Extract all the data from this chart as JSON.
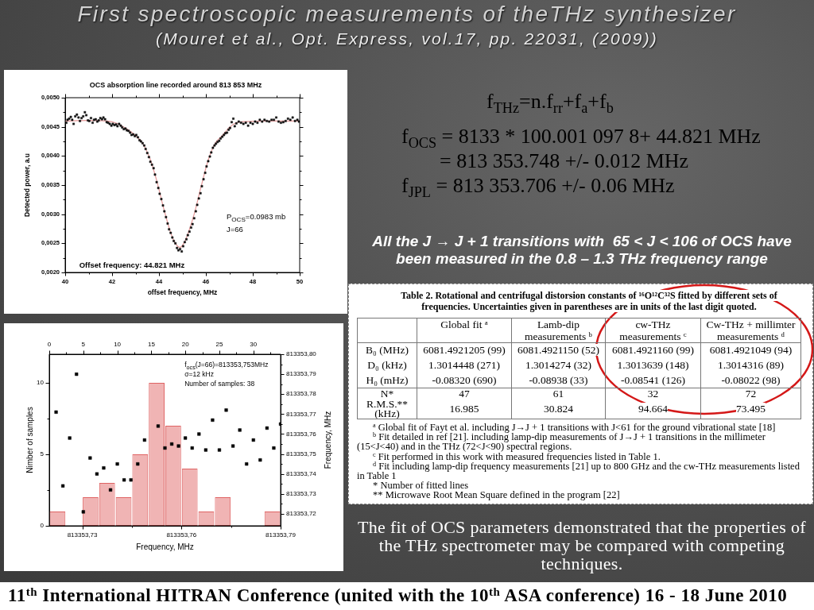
{
  "chart_data": [
    {
      "type": "other",
      "title": "First spectroscopic measurements of theTHz synthesizer",
      "subtitle": "(Mouret et al., Opt. Express, vol.17, pp. 22031, (2009))"
    },
    {
      "type": "scatter",
      "title": "OCS absorption line recorded around 813 853 MHz",
      "xlabel": "offset frequency, MHz",
      "ylabel": "Detected power, a.u",
      "xlim": [
        40,
        50
      ],
      "xticks": [
        40,
        {
          "value": 41,
          "label": null
        },
        42,
        {
          "value": 43,
          "label": null
        },
        44,
        {
          "value": 45,
          "label": null
        },
        46,
        {
          "value": 47,
          "label": null
        },
        48,
        {
          "value": 49,
          "label": null
        },
        50
      ],
      "ylim": [
        0.002,
        0.005
      ],
      "yticks": [
        {
          "value": 0.002,
          "label": "0,0020"
        },
        {
          "value": 0.00225,
          "label": null
        },
        {
          "value": 0.0025,
          "label": "0,0025"
        },
        {
          "value": 0.00275,
          "label": null
        },
        {
          "value": 0.003,
          "label": "0,0030"
        },
        {
          "value": 0.00325,
          "label": null
        },
        {
          "value": 0.0035,
          "label": "0,0035"
        },
        {
          "value": 0.00375,
          "label": null
        },
        {
          "value": 0.004,
          "label": "0,0040"
        },
        {
          "value": 0.00425,
          "label": null
        },
        {
          "value": 0.0045,
          "label": "0,0045"
        },
        {
          "value": 0.00475,
          "label": null
        },
        {
          "value": 0.005,
          "label": "0,0050"
        }
      ],
      "series": [
        {
          "type": "scatter",
          "marker": "square",
          "color": "#111111",
          "x": [
            40.05,
            40.1,
            40.17,
            40.24,
            40.3,
            40.36,
            40.43,
            40.5,
            40.57,
            40.63,
            40.7,
            40.77,
            40.84,
            40.9,
            40.97,
            41.03,
            41.1,
            41.17,
            41.23,
            41.3,
            41.37,
            41.43,
            41.5,
            41.57,
            41.63,
            41.7,
            41.77,
            41.83,
            41.9,
            41.97,
            42.03,
            42.1,
            42.17,
            42.23,
            42.3,
            42.37,
            42.43,
            42.5,
            42.57,
            42.63,
            42.7,
            42.77,
            42.83,
            42.9,
            42.97,
            43.03,
            43.1,
            43.17,
            43.23,
            43.3,
            43.37,
            43.43,
            43.5,
            43.57,
            43.63,
            43.7,
            43.77,
            43.83,
            43.9,
            43.97,
            44.03,
            44.1,
            44.17,
            44.23,
            44.3,
            44.37,
            44.43,
            44.5,
            44.57,
            44.63,
            44.7,
            44.77,
            44.83,
            44.9,
            44.97,
            45.03,
            45.1,
            45.17,
            45.23,
            45.3,
            45.37,
            45.43,
            45.5,
            45.57,
            45.63,
            45.7,
            45.77,
            45.83,
            45.9,
            45.97,
            46.03,
            46.1,
            46.17,
            46.23,
            46.3,
            46.37,
            46.43,
            46.5,
            46.57,
            46.63,
            46.7,
            46.77,
            46.83,
            46.9,
            46.97,
            47.03,
            47.1,
            47.17,
            47.23,
            47.3,
            47.4,
            47.5,
            47.6,
            47.7,
            47.8,
            47.9,
            48.0,
            48.1,
            48.2,
            48.3,
            48.4,
            48.5,
            48.6,
            48.7,
            48.8,
            48.9,
            49.0,
            49.1,
            49.2,
            49.3,
            49.4,
            49.5,
            49.6,
            49.7,
            49.8,
            49.9,
            49.97
          ],
          "values": [
            0.00457,
            0.00462,
            0.00464,
            0.00467,
            0.00462,
            0.00455,
            0.00468,
            0.00471,
            0.00466,
            0.0046,
            0.00465,
            0.00468,
            0.00475,
            0.0047,
            0.00461,
            0.0046,
            0.00465,
            0.00457,
            0.00462,
            0.00463,
            0.00459,
            0.00461,
            0.00465,
            0.00463,
            0.00466,
            0.00463,
            0.00458,
            0.00457,
            0.00455,
            0.00452,
            0.00455,
            0.00453,
            0.00454,
            0.00451,
            0.00455,
            0.00452,
            0.00449,
            0.00446,
            0.00447,
            0.00444,
            0.00443,
            0.0044,
            0.00436,
            0.00437,
            0.00434,
            0.00436,
            0.00432,
            0.00427,
            0.00425,
            0.00422,
            0.00418,
            0.00412,
            0.00405,
            0.00398,
            0.0039,
            0.00385,
            0.00379,
            0.00368,
            0.00355,
            0.00345,
            0.00335,
            0.00326,
            0.00315,
            0.00305,
            0.00295,
            0.00284,
            0.00274,
            0.00268,
            0.0026,
            0.00254,
            0.0025,
            0.00242,
            0.00238,
            0.0024,
            0.00236,
            0.00245,
            0.00252,
            0.00257,
            0.00264,
            0.0027,
            0.00277,
            0.00283,
            0.00293,
            0.00305,
            0.00316,
            0.00327,
            0.00336,
            0.00348,
            0.0036,
            0.00371,
            0.00382,
            0.00391,
            0.00399,
            0.00406,
            0.00414,
            0.00418,
            0.00421,
            0.00424,
            0.00426,
            0.0043,
            0.00433,
            0.00436,
            0.00439,
            0.0044,
            0.00445,
            0.00448,
            0.00458,
            0.00464,
            0.00451,
            0.00456,
            0.00459,
            0.00457,
            0.00455,
            0.00457,
            0.00452,
            0.00457,
            0.00455,
            0.00459,
            0.00457,
            0.00462,
            0.00459,
            0.00462,
            0.0046,
            0.00459,
            0.00462,
            0.00462,
            0.00466,
            0.00459,
            0.00457,
            0.00458,
            0.0046,
            0.00464,
            0.00462,
            0.00466,
            0.0046,
            0.00462,
            0.00459
          ]
        },
        {
          "type": "line",
          "color": "#e79a9a",
          "x": [
            40,
            41,
            41.8,
            42.2,
            42.6,
            43.0,
            43.3,
            43.6,
            43.9,
            44.2,
            44.5,
            44.7,
            44.9,
            45.1,
            45.3,
            45.5,
            45.8,
            46.1,
            46.4,
            46.7,
            47.0,
            47.3,
            47.7,
            48.5,
            50
          ],
          "values": [
            0.0046,
            0.00461,
            0.0046,
            0.00456,
            0.00447,
            0.00435,
            0.00422,
            0.00397,
            0.00358,
            0.0031,
            0.00268,
            0.0025,
            0.00243,
            0.00253,
            0.00274,
            0.003,
            0.00348,
            0.00393,
            0.00422,
            0.00435,
            0.00449,
            0.00457,
            0.00459,
            0.0046,
            0.0046
          ]
        }
      ],
      "annotations": [
        "P$_{OCS}$=0.0983 mb",
        "J=66",
        "Offset frequency: 44.821 MHz"
      ]
    },
    {
      "type": "other",
      "annotations": [
        "f$_{THz}$=n.f$_{rr}$+f$_{a}$+f$_{b}$",
        "f$_{OCS}$ = 8133 * 100.001 097 8+ 44.821 MHz",
        "= 813 353.748 +/- 0.012 MHz",
        "f$_{JPL}$ = 813 353.706 +/- 0.06 MHz",
        "All the J → J + 1 transitions with  65 < J < 106 of OCS have been measured in the 0.8 – 1.3 THz frequency range"
      ]
    },
    {
      "type": "other",
      "title": "Table 2. Rotational and centrifugal distorsion constants of ¹⁶O¹²C³²S fitted by different sets of frequencies. Uncertainties given in parentheses are in units of the last digit quoted.",
      "categories": [
        "Global fit $^{a}$",
        "Lamb-dip measurements $^{b}$",
        "cw-THz measurements $^{c}$",
        "Cw-THz + millimter measurements $^{d}$"
      ],
      "y_categories": [
        "B₀ (MHz)",
        "D₀ (kHz)",
        "H₀ (mHz)",
        "N*",
        "R.M.S.** (kHz)"
      ],
      "cell_labels": [
        [
          "6081.4921205 (99)",
          "6081.4921150 (52)",
          "6081.4921160 (99)",
          "6081.4921049 (94)"
        ],
        [
          "1.3014448 (271)",
          "1.3014274 (32)",
          "1.3013639 (148)",
          "1.3014316 (89)"
        ],
        [
          "-0.08320 (690)",
          "-0.08938 (33)",
          "-0.08541 (126)",
          "-0.08022 (98)"
        ],
        [
          "47",
          "61",
          "32",
          "72"
        ],
        [
          "16.985",
          "30.824",
          "94.664",
          "73.495"
        ]
      ],
      "annotations": [
        "$^{a}$ Global fit of Fayt et al. including J→J + 1 transitions with J<61 for the ground vibrational state [18]",
        "$^{b}$ Fit detailed in ref [21]. including lamp-dip measurements of J→J + 1 transitions in the millimeter (15<J<40) and in the THz (72<J<90) spectral regions.",
        "$^{c}$ Fit performed in this work with measured frequencies listed in Table 1.",
        "$^{d}$ Fit including lamp-dip frequency measurements [21] up to 800 GHz and the cw-THz measurements listed in Table 1",
        "* Number of fitted lines",
        "** Microwave Root Mean Square defined in the program [22]"
      ]
    },
    {
      "type": "histogram",
      "x2label": "Frequency, MHz",
      "ylabel": "Nimber of samples",
      "y2label": "Frequency, MHz",
      "bins": [
        813353.72,
        813353.725,
        813353.73,
        813353.735,
        813353.74,
        813353.745,
        813353.75,
        813353.755,
        813353.76,
        813353.765,
        813353.77,
        813353.775,
        813353.78,
        813353.785,
        813353.79
      ],
      "xlim": [
        0,
        34
      ],
      "xticks": [
        0,
        {
          "value": 2.5,
          "label": null
        },
        5,
        {
          "value": 7.5,
          "label": null
        },
        10,
        {
          "value": 12.5,
          "label": null
        },
        15,
        {
          "value": 17.5,
          "label": null
        },
        20,
        {
          "value": 22.5,
          "label": null
        },
        25,
        {
          "value": 27.5,
          "label": null
        },
        30,
        {
          "value": 32.5,
          "label": null
        }
      ],
      "x2lim": [
        813353.72,
        813353.79
      ],
      "x2ticks": [
        {
          "value": 813353.73,
          "label": "813353,73"
        },
        {
          "value": 813353.745,
          "label": null
        },
        {
          "value": 813353.76,
          "label": "813353,76"
        },
        {
          "value": 813353.775,
          "label": null
        },
        {
          "value": 813353.79,
          "label": "813353,79"
        }
      ],
      "ylim": [
        0,
        12
      ],
      "yticks": [
        0,
        {
          "value": 2.5,
          "label": null
        },
        5,
        {
          "value": 7.5,
          "label": null
        },
        10
      ],
      "y2lim": [
        813353.714,
        813353.8
      ],
      "y2ticks": [
        {
          "value": 813353.72,
          "label": "813353,72"
        },
        {
          "value": 813353.725,
          "label": null
        },
        {
          "value": 813353.73,
          "label": "813353,73"
        },
        {
          "value": 813353.735,
          "label": null
        },
        {
          "value": 813353.74,
          "label": "813353,74"
        },
        {
          "value": 813353.745,
          "label": null
        },
        {
          "value": 813353.75,
          "label": "813353,75"
        },
        {
          "value": 813353.755,
          "label": null
        },
        {
          "value": 813353.76,
          "label": "813353,76"
        },
        {
          "value": 813353.765,
          "label": null
        },
        {
          "value": 813353.77,
          "label": "813353,77"
        },
        {
          "value": 813353.775,
          "label": null
        },
        {
          "value": 813353.78,
          "label": "813353,78"
        },
        {
          "value": 813353.785,
          "label": null
        },
        {
          "value": 813353.79,
          "label": "813353,79"
        },
        {
          "value": 813353.795,
          "label": null
        },
        {
          "value": 813353.8,
          "label": "813353,80"
        }
      ],
      "series": [
        {
          "axis": "x2",
          "color": "#f0b4b4",
          "values": [
            1,
            0,
            2,
            3,
            2,
            5,
            10,
            7,
            4,
            1,
            2,
            0,
            0,
            1
          ]
        },
        {
          "type": "scatter",
          "axis": "y2",
          "marker": "square",
          "color": "#000000",
          "x": [
            1,
            2,
            3,
            4,
            5,
            6,
            7,
            8,
            9,
            10,
            11,
            12,
            13,
            14,
            16,
            17,
            18,
            19,
            20,
            21,
            22,
            23,
            24,
            25,
            26,
            27,
            28,
            29,
            30,
            31,
            32,
            33,
            34
          ],
          "values": [
            813353.771,
            813353.734,
            813353.758,
            813353.79,
            813353.721,
            813353.748,
            813353.74,
            813353.743,
            813353.732,
            813353.745,
            813353.737,
            813353.737,
            813353.745,
            813353.757,
            813353.764,
            813353.753,
            813353.755,
            813353.754,
            813353.758,
            813353.753,
            813353.76,
            813353.752,
            813353.767,
            813353.752,
            813353.772,
            813353.754,
            813353.762,
            813353.745,
            813353.757,
            813353.747,
            813353.763,
            813353.753,
            813353.765
          ]
        }
      ],
      "annotations": [
        "f$_{ocs}$(J=66)=813353,753MHz",
        "σ=12 kHz",
        "Number of samples: 38"
      ]
    },
    {
      "type": "other",
      "annotations": [
        "The fit of OCS parameters demonstrated that the properties of the THz spectrometer may be compared with competing techniques."
      ]
    },
    {
      "type": "other",
      "annotations": [
        "11$^{th}$ International HITRAN Conference (united with the 10$^{th}$ ASA conference) 16 - 18 June 2010"
      ]
    }
  ]
}
